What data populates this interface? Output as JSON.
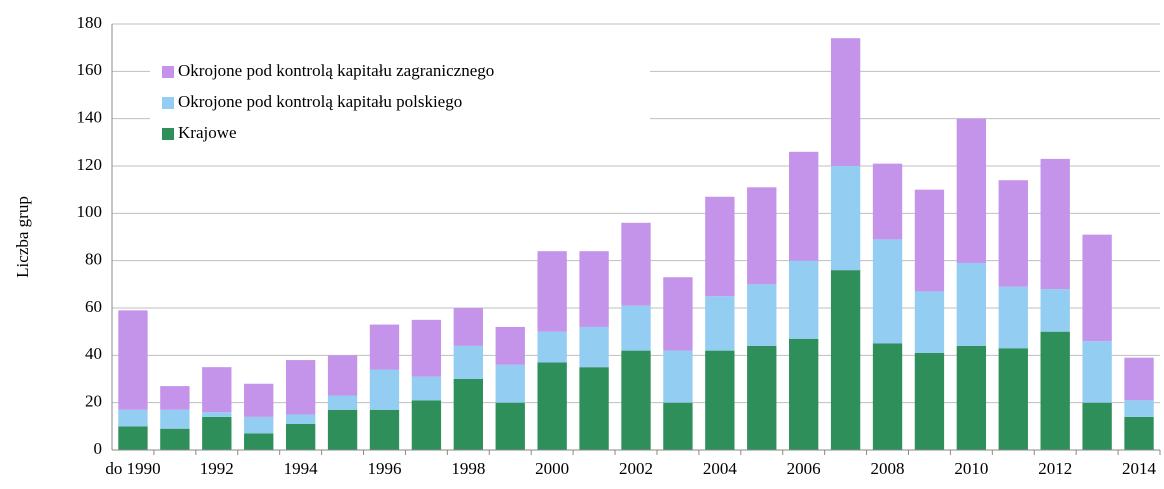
{
  "chart_data": {
    "type": "stacked_bar",
    "y_label": "Liczba grup",
    "categories": [
      "do 1990",
      null,
      "1992",
      null,
      "1994",
      null,
      "1996",
      null,
      "1998",
      null,
      "2000",
      null,
      "2002",
      null,
      "2004",
      null,
      "2006",
      null,
      "2008",
      null,
      "2010",
      null,
      "2012",
      null,
      "2014"
    ],
    "series": [
      {
        "name": "Krajowe",
        "color": "#2f8f5b",
        "values": [
          10,
          9,
          14,
          7,
          11,
          17,
          17,
          21,
          30,
          20,
          37,
          35,
          42,
          20,
          42,
          44,
          47,
          76,
          45,
          41,
          44,
          43,
          50,
          20,
          14
        ]
      },
      {
        "name": "Okrojone pod kontrolą kapitału polskiego",
        "color": "#93cdf2",
        "values": [
          7,
          8,
          2,
          7,
          4,
          6,
          17,
          10,
          14,
          16,
          13,
          17,
          19,
          22,
          23,
          26,
          33,
          44,
          44,
          26,
          35,
          26,
          18,
          26,
          7
        ]
      },
      {
        "name": "Okrojone pod kontrolą kapitału zagranicznego",
        "color": "#c493ea",
        "values": [
          42,
          10,
          19,
          14,
          23,
          17,
          19,
          24,
          16,
          16,
          34,
          32,
          35,
          31,
          42,
          41,
          46,
          54,
          32,
          43,
          61,
          45,
          55,
          45,
          18
        ]
      }
    ],
    "ylim": [
      0,
      180
    ],
    "yticks": [
      0,
      20,
      40,
      60,
      80,
      100,
      120,
      140,
      160,
      180
    ],
    "grid": true,
    "legend": "top-left"
  }
}
